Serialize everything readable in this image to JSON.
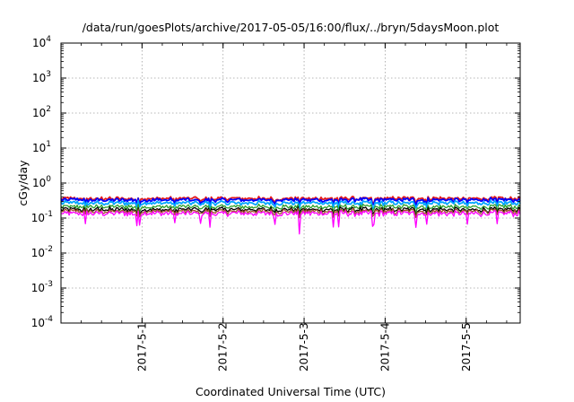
{
  "chart_data": {
    "type": "line",
    "title": "/data/run/goesPlots/archive/2017-05-05/16:00/flux/../bryn/5daysMoon.plot",
    "xlabel": "Coordinated Universal Time (UTC)",
    "ylabel": "cGy/day",
    "y_scale": "log",
    "ylim": [
      0.0001,
      10000
    ],
    "xlim": [
      "2017-04-30T00:00",
      "2017-05-05T16:00"
    ],
    "grid": true,
    "legend": "none",
    "y_ticks": [
      {
        "value": 0.0001,
        "base": "10",
        "exp": "-4"
      },
      {
        "value": 0.001,
        "base": "10",
        "exp": "-3"
      },
      {
        "value": 0.01,
        "base": "10",
        "exp": "-2"
      },
      {
        "value": 0.1,
        "base": "10",
        "exp": "-1"
      },
      {
        "value": 1,
        "base": "10",
        "exp": "0"
      },
      {
        "value": 10,
        "base": "10",
        "exp": "1"
      },
      {
        "value": 100,
        "base": "10",
        "exp": "2"
      },
      {
        "value": 1000,
        "base": "10",
        "exp": "3"
      },
      {
        "value": 10000,
        "base": "10",
        "exp": "4"
      }
    ],
    "x_ticks": [
      {
        "value": "2017-05-01T00:00",
        "label": "2017-5-1"
      },
      {
        "value": "2017-05-02T00:00",
        "label": "2017-5-2"
      },
      {
        "value": "2017-05-03T00:00",
        "label": "2017-5-3"
      },
      {
        "value": "2017-05-04T00:00",
        "label": "2017-5-4"
      },
      {
        "value": "2017-05-05T00:00",
        "label": "2017-5-5"
      }
    ],
    "series": [
      {
        "color": "#e41a1c",
        "baseline": 0.36,
        "values_description": "fluctuating between ~0.25 and ~0.45 cGy/day"
      },
      {
        "color": "#0000ff",
        "baseline": 0.33,
        "values_description": "fluctuating between ~0.22 and ~0.42 cGy/day"
      },
      {
        "color": "#00a5ff",
        "baseline": 0.27,
        "values_description": "fluctuating between ~0.18 and ~0.33 cGy/day"
      },
      {
        "color": "#2ca02c",
        "baseline": 0.21,
        "values_description": "fluctuating between ~0.17 and ~0.24 cGy/day"
      },
      {
        "color": "#000000",
        "baseline": 0.175,
        "values_description": "fluctuating between ~0.15 and ~0.19 cGy/day"
      },
      {
        "color": "#a0522d",
        "baseline": 0.155,
        "values_description": "fluctuating between ~0.13 and ~0.17 cGy/day"
      },
      {
        "color": "#ff00ff",
        "baseline": 0.135,
        "values_description": "around ~0.13 cGy/day with dips to ~0.04 cGy/day"
      }
    ]
  }
}
